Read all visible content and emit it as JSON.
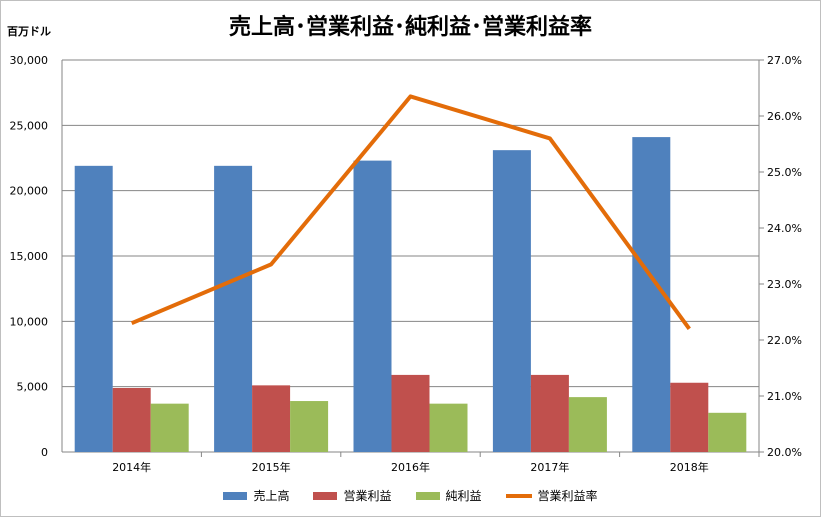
{
  "chart_data": {
    "type": "bar+line",
    "title": "売上高･営業利益･純利益･営業利益率",
    "y_left_label": "百万ドル",
    "categories": [
      "2014年",
      "2015年",
      "2016年",
      "2017年",
      "2018年"
    ],
    "series": [
      {
        "name": "売上高",
        "type": "bar",
        "axis": "left",
        "color": "#4f81bd",
        "values": [
          21900,
          21900,
          22300,
          23100,
          24100
        ]
      },
      {
        "name": "営業利益",
        "type": "bar",
        "axis": "left",
        "color": "#c0504d",
        "values": [
          4900,
          5100,
          5900,
          5900,
          5300
        ]
      },
      {
        "name": "純利益",
        "type": "bar",
        "axis": "left",
        "color": "#9bbb59",
        "values": [
          3700,
          3900,
          3700,
          4200,
          3000
        ]
      },
      {
        "name": "営業利益率",
        "type": "line",
        "axis": "right",
        "color": "#e36c09",
        "values": [
          22.3,
          23.35,
          26.35,
          25.6,
          22.2
        ]
      }
    ],
    "y_left": {
      "min": 0,
      "max": 30000,
      "ticks": [
        "0",
        "5,000",
        "10,000",
        "15,000",
        "20,000",
        "25,000",
        "30,000"
      ]
    },
    "y_right": {
      "min": 20.0,
      "max": 27.0,
      "ticks": [
        "20.0%",
        "21.0%",
        "22.0%",
        "23.0%",
        "24.0%",
        "25.0%",
        "26.0%",
        "27.0%"
      ]
    },
    "grid": true,
    "legend_position": "bottom"
  }
}
